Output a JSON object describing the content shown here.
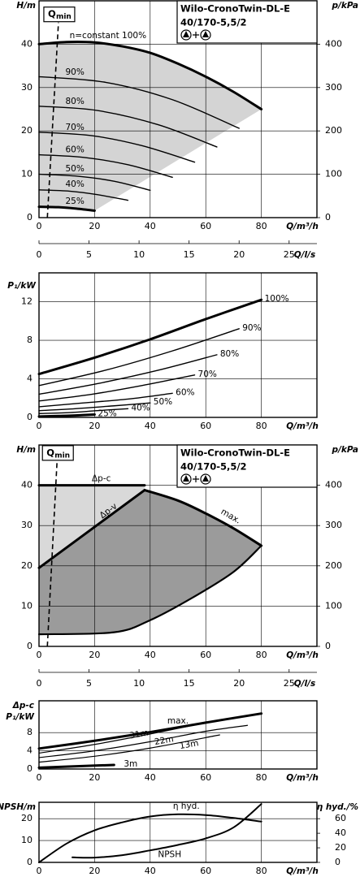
{
  "chart_data": [
    {
      "type": "line",
      "title": "Wilo-CronoTwin-DL-E",
      "subtitle": "40/170-5,5/2",
      "y_label": "H/m",
      "y2_label": "p/kPa",
      "x_label": "Q/m³/h",
      "x2_label": "Q/l/s",
      "xlim": [
        0,
        100
      ],
      "xticks": [
        0,
        20,
        40,
        60,
        80
      ],
      "ylim": [
        0,
        50
      ],
      "yticks": [
        0,
        10,
        20,
        30,
        40
      ],
      "y2lim": [
        0,
        500
      ],
      "y2ticks": [
        0,
        100,
        200,
        300,
        400
      ],
      "x2lim": [
        0,
        27.78
      ],
      "x2ticks": [
        0,
        5,
        10,
        15,
        20,
        25
      ],
      "grid": true,
      "shade": [
        "#d4d4d4"
      ],
      "qmin": {
        "label": "Q",
        "sub": "min",
        "x": [
          3,
          7
        ],
        "values": [
          0,
          45
        ]
      },
      "series": [
        {
          "name": "n=constant 100%",
          "color": "#000000",
          "width": 3,
          "x": [
            0,
            10,
            20,
            30,
            40,
            50,
            60,
            70,
            80
          ],
          "values": [
            40,
            40.5,
            40.4,
            39.5,
            38,
            35.5,
            32.5,
            29,
            25
          ]
        },
        {
          "name": "90%",
          "color": "#000000",
          "width": 1.4,
          "x": [
            0,
            24,
            48,
            72
          ],
          "values": [
            32.5,
            31.2,
            27.2,
            20.6
          ]
        },
        {
          "name": "80%",
          "color": "#000000",
          "width": 1.4,
          "x": [
            0,
            21,
            43,
            64
          ],
          "values": [
            25.7,
            24.7,
            21.4,
            16.3
          ]
        },
        {
          "name": "70%",
          "color": "#000000",
          "width": 1.4,
          "x": [
            0,
            19,
            37,
            56
          ],
          "values": [
            19.7,
            18.9,
            16.6,
            12.8
          ]
        },
        {
          "name": "60%",
          "color": "#000000",
          "width": 1.4,
          "x": [
            0,
            16,
            32,
            48
          ],
          "values": [
            14.5,
            13.9,
            12.2,
            9.3
          ]
        },
        {
          "name": "50%",
          "color": "#000000",
          "width": 1.4,
          "x": [
            0,
            13,
            27,
            40
          ],
          "values": [
            10,
            9.6,
            8.4,
            6.3
          ]
        },
        {
          "name": "40%",
          "color": "#000000",
          "width": 1.4,
          "x": [
            0,
            11,
            21,
            32
          ],
          "values": [
            6.4,
            6.1,
            5.3,
            4
          ]
        },
        {
          "name": "25%",
          "color": "#000000",
          "width": 3,
          "x": [
            0,
            7,
            13,
            20
          ],
          "values": [
            2.5,
            2.4,
            2.1,
            1.6
          ]
        }
      ]
    },
    {
      "type": "line",
      "y_label": "P₁/kW",
      "x_label": "Q/m³/h",
      "xlim": [
        0,
        100
      ],
      "xticks": [
        0,
        20,
        40,
        60,
        80
      ],
      "ylim": [
        0,
        15
      ],
      "yticks": [
        0,
        4,
        8,
        12
      ],
      "grid": true,
      "series": [
        {
          "name": "100%",
          "color": "#000000",
          "width": 3,
          "x": [
            0,
            20,
            40,
            60,
            80
          ],
          "values": [
            4.5,
            6.2,
            8.1,
            10.2,
            12.2
          ]
        },
        {
          "name": "90%",
          "color": "#000000",
          "width": 1.4,
          "x": [
            0,
            24,
            48,
            72
          ],
          "values": [
            3.3,
            4.9,
            6.9,
            9.2
          ]
        },
        {
          "name": "80%",
          "color": "#000000",
          "width": 1.4,
          "x": [
            0,
            21,
            43,
            64
          ],
          "values": [
            2.4,
            3.5,
            4.9,
            6.5
          ]
        },
        {
          "name": "70%",
          "color": "#000000",
          "width": 1.4,
          "x": [
            0,
            19,
            37,
            56
          ],
          "values": [
            1.7,
            2.4,
            3.3,
            4.4
          ]
        },
        {
          "name": "60%",
          "color": "#000000",
          "width": 1.4,
          "x": [
            0,
            16,
            32,
            48
          ],
          "values": [
            1.1,
            1.5,
            1.9,
            2.5
          ]
        },
        {
          "name": "50%",
          "color": "#000000",
          "width": 1.4,
          "x": [
            0,
            13,
            27,
            40
          ],
          "values": [
            0.7,
            0.9,
            1.2,
            1.5
          ]
        },
        {
          "name": "40%",
          "color": "#000000",
          "width": 1.4,
          "x": [
            0,
            11,
            21,
            32
          ],
          "values": [
            0.4,
            0.5,
            0.7,
            0.9
          ]
        },
        {
          "name": "25%",
          "color": "#000000",
          "width": 3,
          "x": [
            0,
            7,
            13,
            20
          ],
          "values": [
            0.1,
            0.15,
            0.2,
            0.3
          ]
        }
      ]
    },
    {
      "type": "line",
      "title": "Wilo-CronoTwin-DL-E",
      "subtitle": "40/170-5,5/2",
      "y_label": "H/m",
      "y2_label": "p/kPa",
      "x_label": "Q/m³/h",
      "x2_label": "Q/l/s",
      "xlim": [
        0,
        100
      ],
      "xticks": [
        0,
        20,
        40,
        60,
        80
      ],
      "ylim": [
        0,
        50
      ],
      "yticks": [
        0,
        10,
        20,
        30,
        40
      ],
      "y2lim": [
        0,
        500
      ],
      "y2ticks": [
        0,
        100,
        200,
        300,
        400
      ],
      "x2lim": [
        0,
        27.78
      ],
      "x2ticks": [
        0,
        5,
        10,
        15,
        20,
        25
      ],
      "grid": true,
      "shade": [
        "#d9d9d9",
        "#9b9b9b"
      ],
      "qmin": {
        "label": "Q",
        "sub": "min",
        "x": [
          3,
          6.5
        ],
        "values": [
          0,
          46
        ]
      },
      "series": [
        {
          "name": "Δp-c",
          "color": "#000000",
          "width": 3,
          "x": [
            0,
            38
          ],
          "values": [
            40,
            40
          ]
        },
        {
          "name": "Δp-v",
          "color": "#000000",
          "width": 3,
          "x": [
            0,
            38
          ],
          "values": [
            19.5,
            38.8
          ]
        },
        {
          "name": "max.",
          "color": "#000000",
          "width": 3,
          "x": [
            38,
            50,
            60,
            70,
            80
          ],
          "values": [
            38.8,
            36.2,
            33,
            29.3,
            25
          ]
        },
        {
          "color": "#000000",
          "width": 2.2,
          "x": [
            0,
            27,
            40,
            55,
            70,
            80
          ],
          "values": [
            3,
            3.5,
            6.5,
            12,
            18.5,
            25
          ]
        }
      ]
    },
    {
      "type": "line",
      "mode_label": "Δp-c",
      "y_label": "P₁/kW",
      "x_label": "Q/m³/h",
      "xlim": [
        0,
        100
      ],
      "xticks": [
        0,
        20,
        40,
        60,
        80
      ],
      "ylim": [
        0,
        15
      ],
      "yticks": [
        0,
        4,
        8
      ],
      "grid": true,
      "series": [
        {
          "name": "max.",
          "color": "#000000",
          "width": 3,
          "x": [
            0,
            20,
            40,
            60,
            80
          ],
          "values": [
            4.5,
            6.2,
            8.1,
            10.2,
            12.2
          ]
        },
        {
          "name": "31m",
          "color": "#000000",
          "width": 1.2,
          "x": [
            0,
            20,
            40,
            60
          ],
          "values": [
            3.5,
            5.4,
            7.7,
            10.2
          ]
        },
        {
          "name": "22m",
          "color": "#000000",
          "width": 1.2,
          "x": [
            0,
            20,
            40,
            60,
            75
          ],
          "values": [
            2.5,
            4,
            6,
            8.3,
            9.6
          ]
        },
        {
          "name": "13m",
          "color": "#000000",
          "width": 1.2,
          "x": [
            0,
            20,
            40,
            65
          ],
          "values": [
            1.5,
            2.8,
            4.6,
            7.5
          ]
        },
        {
          "name": "3m",
          "color": "#000000",
          "width": 3,
          "x": [
            0,
            27
          ],
          "values": [
            0.3,
            0.9
          ]
        }
      ]
    },
    {
      "type": "line",
      "y_label": "NPSH/m",
      "y2_label": "η hyd./%",
      "x_label": "Q/m³/h",
      "xlim": [
        0,
        100
      ],
      "xticks": [
        0,
        20,
        40,
        60,
        80
      ],
      "ylim": [
        0,
        27.5
      ],
      "yticks": [
        0,
        10,
        20
      ],
      "y2lim": [
        0,
        82.5
      ],
      "y2ticks": [
        0,
        20,
        40,
        60
      ],
      "grid": true,
      "series": [
        {
          "name": "NPSH",
          "color": "#000000",
          "width": 2,
          "x": [
            12,
            20,
            30,
            40,
            50,
            60,
            70,
            80
          ],
          "values": [
            2.3,
            2.2,
            3.3,
            5.5,
            8,
            11,
            16,
            26.7
          ]
        },
        {
          "name": "η hyd.",
          "axis": "y2",
          "color": "#000000",
          "width": 2,
          "x": [
            0,
            10,
            20,
            30,
            40,
            50,
            60,
            70,
            80
          ],
          "values": [
            0,
            26,
            44,
            55,
            63,
            66,
            65,
            61,
            56
          ]
        }
      ]
    }
  ]
}
